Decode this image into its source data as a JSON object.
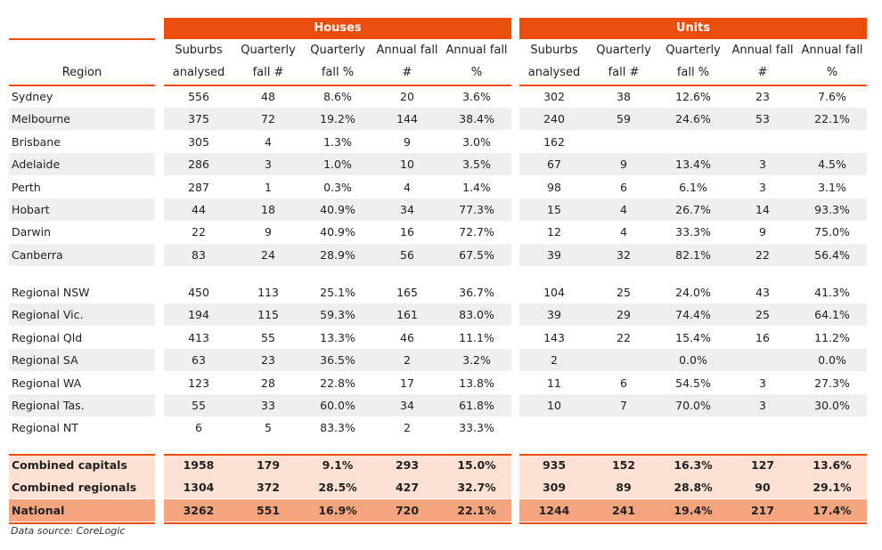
{
  "groups": {
    "houses": "Houses",
    "units": "Units"
  },
  "region_header": "Region",
  "columns": [
    [
      "Suburbs",
      "analysed"
    ],
    [
      "Quarterly",
      "fall #"
    ],
    [
      "Quarterly",
      "fall %"
    ],
    [
      "Annual fall",
      "#"
    ],
    [
      "Annual fall",
      "%"
    ]
  ],
  "capitals": [
    {
      "region": "Sydney",
      "h": [
        "556",
        "48",
        "8.6%",
        "20",
        "3.6%"
      ],
      "u": [
        "302",
        "38",
        "12.6%",
        "23",
        "7.6%"
      ]
    },
    {
      "region": "Melbourne",
      "h": [
        "375",
        "72",
        "19.2%",
        "144",
        "38.4%"
      ],
      "u": [
        "240",
        "59",
        "24.6%",
        "53",
        "22.1%"
      ]
    },
    {
      "region": "Brisbane",
      "h": [
        "305",
        "4",
        "1.3%",
        "9",
        "3.0%"
      ],
      "u": [
        "162",
        "",
        "",
        "",
        ""
      ]
    },
    {
      "region": "Adelaide",
      "h": [
        "286",
        "3",
        "1.0%",
        "10",
        "3.5%"
      ],
      "u": [
        "67",
        "9",
        "13.4%",
        "3",
        "4.5%"
      ]
    },
    {
      "region": "Perth",
      "h": [
        "287",
        "1",
        "0.3%",
        "4",
        "1.4%"
      ],
      "u": [
        "98",
        "6",
        "6.1%",
        "3",
        "3.1%"
      ]
    },
    {
      "region": "Hobart",
      "h": [
        "44",
        "18",
        "40.9%",
        "34",
        "77.3%"
      ],
      "u": [
        "15",
        "4",
        "26.7%",
        "14",
        "93.3%"
      ]
    },
    {
      "region": "Darwin",
      "h": [
        "22",
        "9",
        "40.9%",
        "16",
        "72.7%"
      ],
      "u": [
        "12",
        "4",
        "33.3%",
        "9",
        "75.0%"
      ]
    },
    {
      "region": "Canberra",
      "h": [
        "83",
        "24",
        "28.9%",
        "56",
        "67.5%"
      ],
      "u": [
        "39",
        "32",
        "82.1%",
        "22",
        "56.4%"
      ]
    }
  ],
  "regionals": [
    {
      "region": "Regional NSW",
      "h": [
        "450",
        "113",
        "25.1%",
        "165",
        "36.7%"
      ],
      "u": [
        "104",
        "25",
        "24.0%",
        "43",
        "41.3%"
      ]
    },
    {
      "region": "Regional Vic.",
      "h": [
        "194",
        "115",
        "59.3%",
        "161",
        "83.0%"
      ],
      "u": [
        "39",
        "29",
        "74.4%",
        "25",
        "64.1%"
      ]
    },
    {
      "region": "Regional Qld",
      "h": [
        "413",
        "55",
        "13.3%",
        "46",
        "11.1%"
      ],
      "u": [
        "143",
        "22",
        "15.4%",
        "16",
        "11.2%"
      ]
    },
    {
      "region": "Regional SA",
      "h": [
        "63",
        "23",
        "36.5%",
        "2",
        "3.2%"
      ],
      "u": [
        "2",
        "",
        "0.0%",
        "",
        "0.0%"
      ]
    },
    {
      "region": "Regional WA",
      "h": [
        "123",
        "28",
        "22.8%",
        "17",
        "13.8%"
      ],
      "u": [
        "11",
        "6",
        "54.5%",
        "3",
        "27.3%"
      ]
    },
    {
      "region": "Regional Tas.",
      "h": [
        "55",
        "33",
        "60.0%",
        "34",
        "61.8%"
      ],
      "u": [
        "10",
        "7",
        "70.0%",
        "3",
        "30.0%"
      ]
    },
    {
      "region": "Regional NT",
      "h": [
        "6",
        "5",
        "83.3%",
        "2",
        "33.3%"
      ],
      "u": [
        "",
        "",
        "",
        "",
        ""
      ]
    }
  ],
  "totals": [
    {
      "region": "Combined capitals",
      "h": [
        "1958",
        "179",
        "9.1%",
        "293",
        "15.0%"
      ],
      "u": [
        "935",
        "152",
        "16.3%",
        "127",
        "13.6%"
      ]
    },
    {
      "region": "Combined regionals",
      "h": [
        "1304",
        "372",
        "28.5%",
        "427",
        "32.7%"
      ],
      "u": [
        "309",
        "89",
        "28.8%",
        "90",
        "29.1%"
      ]
    },
    {
      "region": "National",
      "h": [
        "3262",
        "551",
        "16.9%",
        "720",
        "22.1%"
      ],
      "u": [
        "1244",
        "241",
        "19.4%",
        "217",
        "17.4%"
      ]
    }
  ],
  "source": "Data source: CoreLogic",
  "colors": {
    "accent": "#e94e0f",
    "stripe": "#efefef",
    "total_light": "#fde2d4",
    "total_national": "#f7a57f"
  }
}
